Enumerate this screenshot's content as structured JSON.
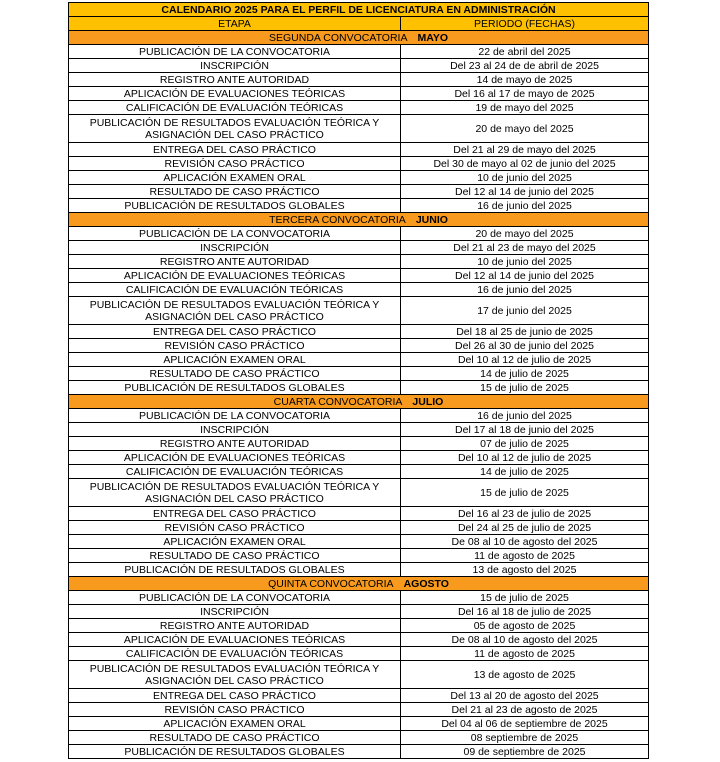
{
  "title": "CALENDARIO 2025 PARA EL PERFIL DE LICENCIATURA EN ADMINISTRACIÓN",
  "headers": {
    "stage": "ETAPA",
    "period": "PERIODO (FECHAS)"
  },
  "colors": {
    "title_bg": "#FFC000",
    "section_bg": "#F79A1E"
  },
  "sections": [
    {
      "name": "SEGUNDA CONVOCATORIA",
      "month": "MAYO",
      "rows": [
        {
          "stage": "PUBLICACIÓN DE LA CONVOCATORIA",
          "period": "22 de abril del 2025"
        },
        {
          "stage": "INSCRIPCIÓN",
          "period": "Del 23 al 24 de de abril de 2025"
        },
        {
          "stage": "REGISTRO ANTE AUTORIDAD",
          "period": "14 de mayo de 2025"
        },
        {
          "stage": "APLICACIÓN DE EVALUACIONES TEÓRICAS",
          "period": "Del 16 al 17 de mayo de 2025"
        },
        {
          "stage": "CALIFICACIÓN DE EVALUACIÓN TEÓRICAS",
          "period": "19 de mayo del 2025"
        },
        {
          "stage": "PUBLICACIÓN DE RESULTADOS EVALUACIÓN TEÓRICA Y ASIGNACIÓN DEL CASO PRÁCTICO",
          "period": "20 de mayo del 2025"
        },
        {
          "stage": "ENTREGA DEL CASO PRÁCTICO",
          "period": "Del 21 al 29 de mayo del 2025"
        },
        {
          "stage": "REVISIÓN CASO PRÁCTICO",
          "period": "Del 30 de mayo al 02 de junio del 2025"
        },
        {
          "stage": "APLICACIÓN EXAMEN ORAL",
          "period": "10 de junio del 2025"
        },
        {
          "stage": "RESULTADO DE CASO PRÁCTICO",
          "period": "Del 12 al 14 de junio del 2025"
        },
        {
          "stage": "PUBLICACIÓN DE RESULTADOS GLOBALES",
          "period": "16 de junio del 2025"
        }
      ]
    },
    {
      "name": "TERCERA CONVOCATORIA",
      "month": "JUNIO",
      "rows": [
        {
          "stage": "PUBLICACIÓN DE LA CONVOCATORIA",
          "period": "20 de mayo del 2025"
        },
        {
          "stage": "INSCRIPCIÓN",
          "period": "Del 21 al 23 de mayo del 2025"
        },
        {
          "stage": "REGISTRO ANTE AUTORIDAD",
          "period": "10 de junio del 2025"
        },
        {
          "stage": "APLICACIÓN DE EVALUACIONES TEÓRICAS",
          "period": "Del 12 al 14 de junio del 2025"
        },
        {
          "stage": "CALIFICACIÓN DE EVALUACIÓN TEÓRICAS",
          "period": "16 de junio del 2025"
        },
        {
          "stage": "PUBLICACIÓN DE RESULTADOS EVALUACIÓN TEÓRICA Y ASIGNACIÓN DEL CASO PRÁCTICO",
          "period": "17 de junio del 2025"
        },
        {
          "stage": "ENTREGA DEL CASO PRÁCTICO",
          "period": "Del 18 al 25 de junio de 2025"
        },
        {
          "stage": "REVISIÓN CASO PRÁCTICO",
          "period": "Del 26 al 30 de junio del 2025"
        },
        {
          "stage": "APLICACIÓN EXAMEN ORAL",
          "period": "Del 10 al 12 de julio de 2025"
        },
        {
          "stage": "RESULTADO DE CASO PRÁCTICO",
          "period": "14 de julio de 2025"
        },
        {
          "stage": "PUBLICACIÓN DE RESULTADOS GLOBALES",
          "period": "15 de julio de 2025"
        }
      ]
    },
    {
      "name": "CUARTA CONVOCATORIA",
      "month": "JULIO",
      "rows": [
        {
          "stage": "PUBLICACIÓN DE LA CONVOCATORIA",
          "period": "16 de junio del 2025"
        },
        {
          "stage": "INSCRIPCIÓN",
          "period": "Del 17 al 18 de junio del 2025"
        },
        {
          "stage": "REGISTRO ANTE AUTORIDAD",
          "period": "07 de julio de 2025"
        },
        {
          "stage": "APLICACIÓN DE EVALUACIONES TEÓRICAS",
          "period": "Del 10 al 12 de julio de 2025"
        },
        {
          "stage": "CALIFICACIÓN DE EVALUACIÓN TEÓRICAS",
          "period": "14 de julio de 2025"
        },
        {
          "stage": "PUBLICACIÓN DE RESULTADOS EVALUACIÓN TEÓRICA Y ASIGNACIÓN DEL CASO PRÁCTICO",
          "period": "15 de julio de 2025"
        },
        {
          "stage": "ENTREGA DEL CASO PRÁCTICO",
          "period": "Del 16 al 23 de julio de 2025"
        },
        {
          "stage": "REVISIÓN CASO PRÁCTICO",
          "period": "Del 24 al 25 de julio de 2025"
        },
        {
          "stage": "APLICACIÓN EXAMEN ORAL",
          "period": "De 08 al 10 de agosto del 2025"
        },
        {
          "stage": "RESULTADO DE CASO PRÁCTICO",
          "period": "11 de agosto de 2025"
        },
        {
          "stage": "PUBLICACIÓN DE RESULTADOS GLOBALES",
          "period": "13 de agosto del 2025"
        }
      ]
    },
    {
      "name": "QUINTA CONVOCATORIA",
      "month": "AGOSTO",
      "rows": [
        {
          "stage": "PUBLICACIÓN DE LA CONVOCATORIA",
          "period": "15 de julio de 2025"
        },
        {
          "stage": "INSCRIPCIÓN",
          "period": "Del 16 al 18 de julio de 2025"
        },
        {
          "stage": "REGISTRO ANTE AUTORIDAD",
          "period": "05 de agosto de 2025"
        },
        {
          "stage": "APLICACIÓN DE EVALUACIONES TEÓRICAS",
          "period": "De 08 al 10 de agosto del 2025"
        },
        {
          "stage": "CALIFICACIÓN DE EVALUACIÓN TEÓRICAS",
          "period": "11 de agosto de 2025"
        },
        {
          "stage": "PUBLICACIÓN DE RESULTADOS EVALUACIÓN TEÓRICA Y ASIGNACIÓN DEL CASO PRÁCTICO",
          "period": "13 de agosto de 2025"
        },
        {
          "stage": "ENTREGA DEL CASO PRÁCTICO",
          "period": "Del 13 al 20 de agosto del 2025"
        },
        {
          "stage": "REVISIÓN CASO PRÁCTICO",
          "period": "Del 21 al 23 de agosto de 2025"
        },
        {
          "stage": "APLICACIÓN EXAMEN ORAL",
          "period": "Del 04 al 06 de septiembre de 2025"
        },
        {
          "stage": "RESULTADO DE CASO PRÁCTICO",
          "period": "08 septiembre de 2025"
        },
        {
          "stage": "PUBLICACIÓN DE RESULTADOS GLOBALES",
          "period": "09 de septiembre de 2025"
        }
      ]
    }
  ]
}
